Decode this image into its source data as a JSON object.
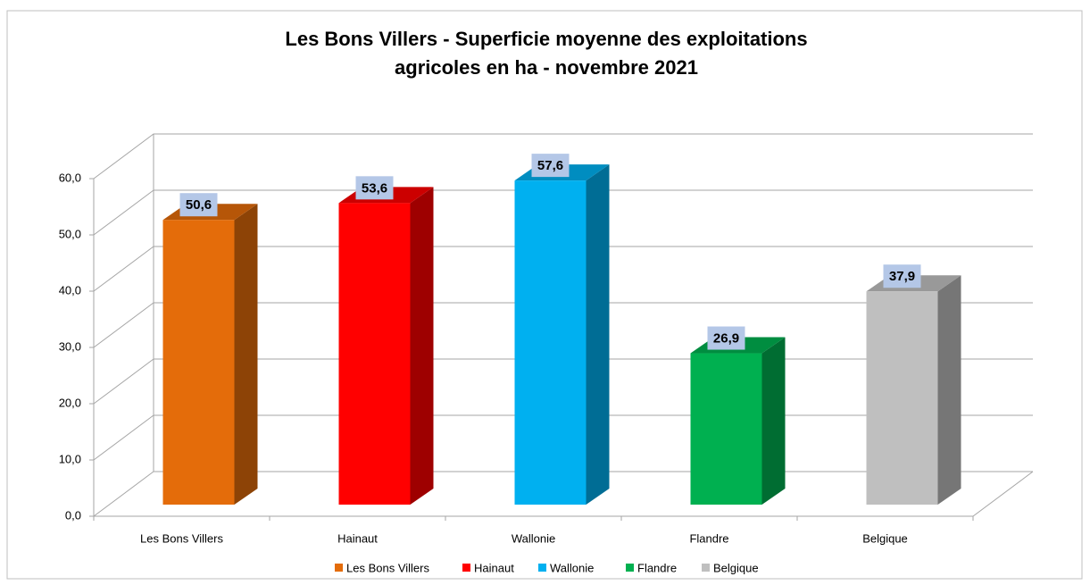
{
  "chart_data": {
    "type": "bar3d",
    "title": [
      "Les Bons Villers - Superficie moyenne des exploitations",
      "agricoles en ha - novembre 2021"
    ],
    "categories": [
      "Les Bons Villers",
      "Hainaut",
      "Wallonie",
      "Flandre",
      "Belgique"
    ],
    "values": [
      50.6,
      53.6,
      57.6,
      26.9,
      37.9
    ],
    "value_labels": [
      "50,6",
      "53,6",
      "57,6",
      "26,9",
      "37,9"
    ],
    "colors": [
      "#e46c0a",
      "#ff0000",
      "#00b0f0",
      "#00b050",
      "#bfbfbf"
    ],
    "ylim": [
      0,
      60
    ],
    "yticks": [
      {
        "value": 0,
        "label": "0,0"
      },
      {
        "value": 10,
        "label": "10,0"
      },
      {
        "value": 20,
        "label": "20,0"
      },
      {
        "value": 30,
        "label": "30,0"
      },
      {
        "value": 40,
        "label": "40,0"
      },
      {
        "value": 50,
        "label": "50,0"
      },
      {
        "value": 60,
        "label": "60,0"
      }
    ],
    "grid": true,
    "legend": "bottom"
  }
}
